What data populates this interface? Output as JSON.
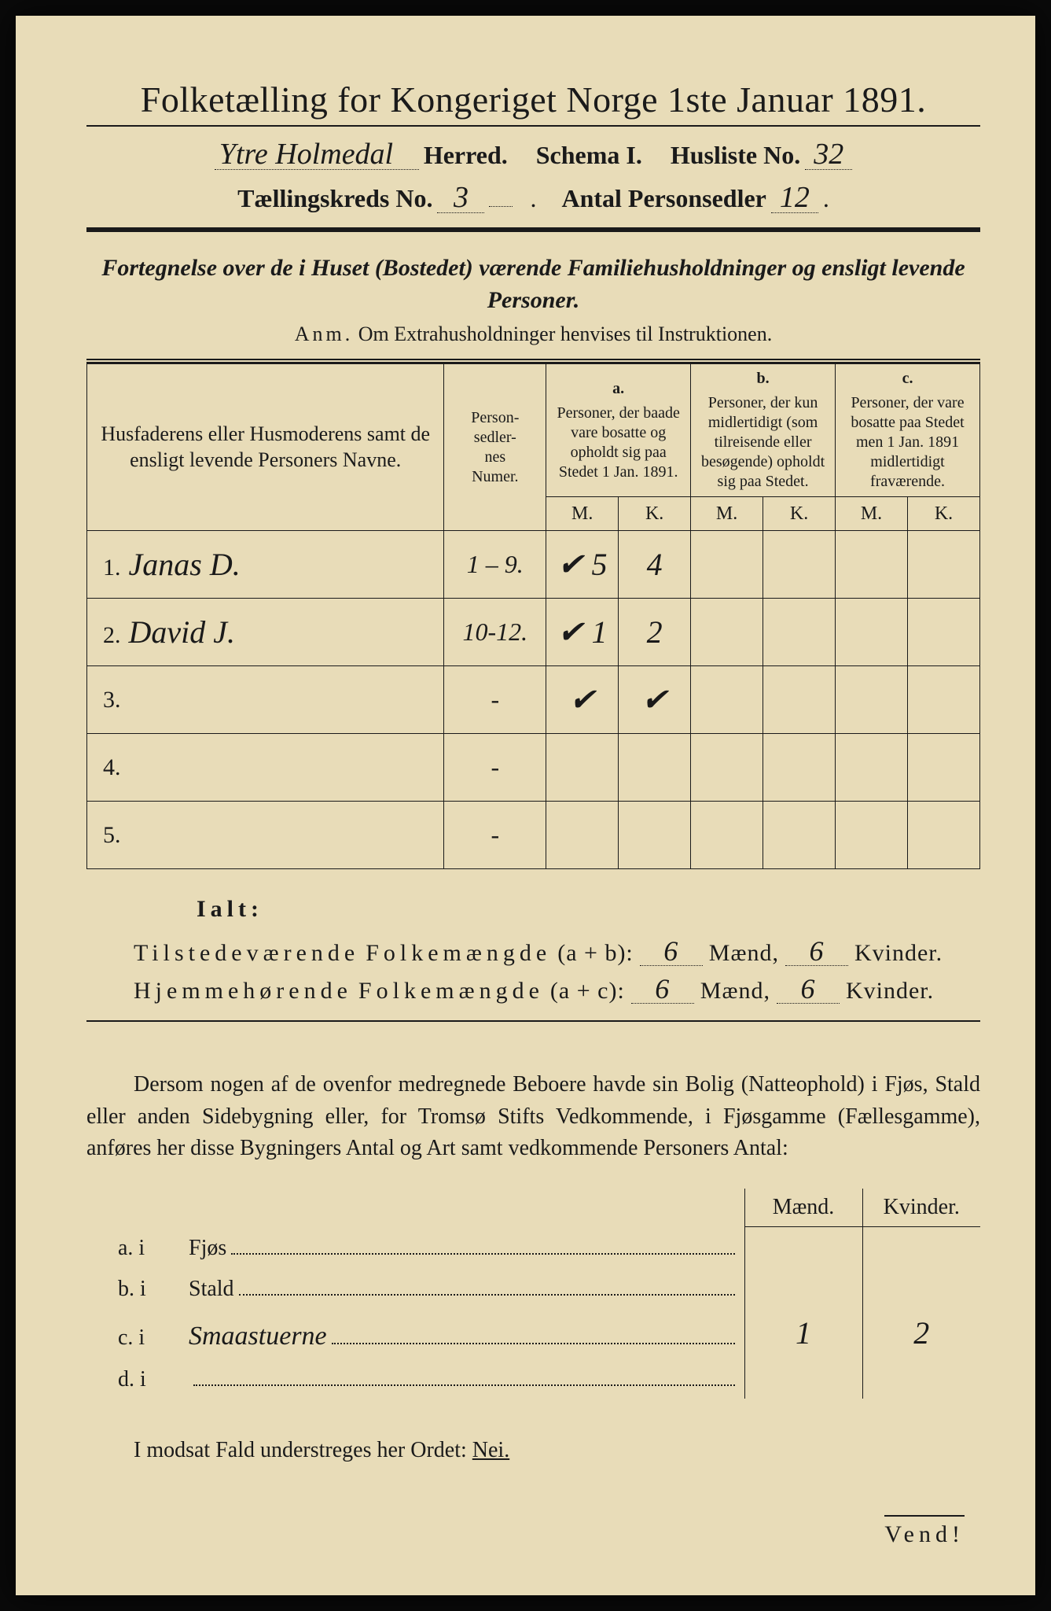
{
  "title": "Folketælling for Kongeriget Norge 1ste Januar 1891.",
  "header": {
    "herred_value": "Ytre Holmedal",
    "herred_label": "Herred.",
    "schema_label": "Schema I.",
    "husliste_label": "Husliste No.",
    "husliste_value": "32",
    "kreds_label": "Tællingskreds No.",
    "kreds_value": "3",
    "antal_label": "Antal Personsedler",
    "antal_value": "12"
  },
  "section_heading": "Fortegnelse over de i Huset (Bostedet) værende Familiehusholdninger og ensligt levende Personer.",
  "anm_label": "Anm.",
  "anm_text": "Om Extrahusholdninger henvises til Instruktionen.",
  "table": {
    "col_name": "Husfaderens eller Husmoderens samt de ensligt levende Personers Navne.",
    "col_numer": "Person-\nsedler-\nnes\nNumer.",
    "col_a_label": "a.",
    "col_a": "Personer, der baade vare bosatte og opholdt sig paa Stedet 1 Jan. 1891.",
    "col_b_label": "b.",
    "col_b": "Personer, der kun midlertidigt (som tilreisende eller besøgende) opholdt sig paa Stedet.",
    "col_c_label": "c.",
    "col_c": "Personer, der vare bosatte paa Stedet men 1 Jan. 1891 midlertidigt fraværende.",
    "mk_m": "M.",
    "mk_k": "K.",
    "rows": [
      {
        "n": "1.",
        "name": "Janas D.",
        "numer": "1 – 9.",
        "a_m": "✔ 5",
        "a_k": "4",
        "b_m": "",
        "b_k": "",
        "c_m": "",
        "c_k": ""
      },
      {
        "n": "2.",
        "name": "David J.",
        "numer": "10-12.",
        "a_m": "✔ 1",
        "a_k": "2",
        "b_m": "",
        "b_k": "",
        "c_m": "",
        "c_k": ""
      },
      {
        "n": "3.",
        "name": "",
        "numer": "-",
        "a_m": "✔",
        "a_k": "✔",
        "b_m": "",
        "b_k": "",
        "c_m": "",
        "c_k": ""
      },
      {
        "n": "4.",
        "name": "",
        "numer": "-",
        "a_m": "",
        "a_k": "",
        "b_m": "",
        "b_k": "",
        "c_m": "",
        "c_k": ""
      },
      {
        "n": "5.",
        "name": "",
        "numer": "-",
        "a_m": "",
        "a_k": "",
        "b_m": "",
        "b_k": "",
        "c_m": "",
        "c_k": ""
      }
    ]
  },
  "ialt_label": "Ialt:",
  "counts": {
    "tilstede_label_a": "Tilstedeværende",
    "folkemengde": "Folkemængde",
    "tilstede_expr": "(a + b):",
    "hjemme_label_a": "Hjemmehørende",
    "hjemme_expr": "(a + c):",
    "maend_label": "Mænd,",
    "kvinder_label": "Kvinder.",
    "tilstede_m": "6",
    "tilstede_k": "6",
    "hjemme_m": "6",
    "hjemme_k": "6"
  },
  "para": "Dersom nogen af de ovenfor medregnede Beboere havde sin Bolig (Natteophold) i Fjøs, Stald eller anden Sidebygning eller, for Tromsø Stifts Vedkommende, i Fjøsgamme (Fællesgamme), anføres her disse Bygningers Antal og Art samt vedkommende Personers Antal:",
  "subtable": {
    "head_m": "Mænd.",
    "head_k": "Kvinder.",
    "rows": [
      {
        "key": "a.  i",
        "label": "Fjøs",
        "extra": "",
        "m": "",
        "k": ""
      },
      {
        "key": "b.  i",
        "label": "Stald",
        "extra": "",
        "m": "",
        "k": ""
      },
      {
        "key": "c.  i",
        "label": "",
        "extra": "Smaastuerne",
        "m": "1",
        "k": "2"
      },
      {
        "key": "d.  i",
        "label": "",
        "extra": "",
        "m": "",
        "k": ""
      }
    ]
  },
  "nei_line_a": "I modsat Fald understreges her Ordet:",
  "nei_line_b": "Nei.",
  "vend": "Vend!"
}
